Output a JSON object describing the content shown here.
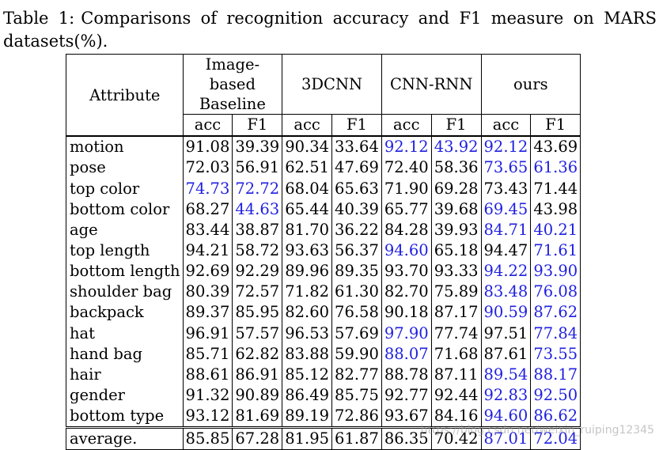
{
  "caption": {
    "label": "Table 1:",
    "text": "Comparisons of recognition accuracy and F1 measure on MARS datasets(%)."
  },
  "table": {
    "attribute_header": "Attribute",
    "methods": [
      {
        "name": "Image-based Baseline"
      },
      {
        "name": "3DCNN"
      },
      {
        "name": "CNN-RNN"
      },
      {
        "name": "ours"
      }
    ],
    "subheaders": [
      "acc",
      "F1",
      "acc",
      "F1",
      "acc",
      "F1",
      "acc",
      "F1"
    ],
    "highlight_color": "#1f1fe0",
    "rows": [
      {
        "attribute": "motion",
        "values": [
          "91.08",
          "39.39",
          "90.34",
          "33.64",
          "92.12",
          "43.92",
          "92.12",
          "43.69"
        ],
        "best": [
          false,
          false,
          false,
          false,
          true,
          true,
          true,
          false
        ]
      },
      {
        "attribute": "pose",
        "values": [
          "72.03",
          "56.91",
          "62.51",
          "47.69",
          "72.40",
          "58.36",
          "73.65",
          "61.36"
        ],
        "best": [
          false,
          false,
          false,
          false,
          false,
          false,
          true,
          true
        ]
      },
      {
        "attribute": "top color",
        "values": [
          "74.73",
          "72.72",
          "68.04",
          "65.63",
          "71.90",
          "69.28",
          "73.43",
          "71.44"
        ],
        "best": [
          true,
          true,
          false,
          false,
          false,
          false,
          false,
          false
        ]
      },
      {
        "attribute": "bottom color",
        "values": [
          "68.27",
          "44.63",
          "65.44",
          "40.39",
          "65.77",
          "39.68",
          "69.45",
          "43.98"
        ],
        "best": [
          false,
          true,
          false,
          false,
          false,
          false,
          true,
          false
        ]
      },
      {
        "attribute": "age",
        "values": [
          "83.44",
          "38.87",
          "81.70",
          "36.22",
          "84.28",
          "39.93",
          "84.71",
          "40.21"
        ],
        "best": [
          false,
          false,
          false,
          false,
          false,
          false,
          true,
          true
        ]
      },
      {
        "attribute": "top length",
        "values": [
          "94.21",
          "58.72",
          "93.63",
          "56.37",
          "94.60",
          "65.18",
          "94.47",
          "71.61"
        ],
        "best": [
          false,
          false,
          false,
          false,
          true,
          false,
          false,
          true
        ]
      },
      {
        "attribute": "bottom length",
        "values": [
          "92.69",
          "92.29",
          "89.96",
          "89.35",
          "93.70",
          "93.33",
          "94.22",
          "93.90"
        ],
        "best": [
          false,
          false,
          false,
          false,
          false,
          false,
          true,
          true
        ]
      },
      {
        "attribute": "shoulder bag",
        "values": [
          "80.39",
          "72.57",
          "71.82",
          "61.30",
          "82.70",
          "75.89",
          "83.48",
          "76.08"
        ],
        "best": [
          false,
          false,
          false,
          false,
          false,
          false,
          true,
          true
        ]
      },
      {
        "attribute": "backpack",
        "values": [
          "89.37",
          "85.95",
          "82.60",
          "76.58",
          "90.18",
          "87.17",
          "90.59",
          "87.62"
        ],
        "best": [
          false,
          false,
          false,
          false,
          false,
          false,
          true,
          true
        ]
      },
      {
        "attribute": "hat",
        "values": [
          "96.91",
          "57.57",
          "96.53",
          "57.69",
          "97.90",
          "77.74",
          "97.51",
          "77.84"
        ],
        "best": [
          false,
          false,
          false,
          false,
          true,
          false,
          false,
          true
        ]
      },
      {
        "attribute": "hand bag",
        "values": [
          "85.71",
          "62.82",
          "83.88",
          "59.90",
          "88.07",
          "71.68",
          "87.61",
          "73.55"
        ],
        "best": [
          false,
          false,
          false,
          false,
          true,
          false,
          false,
          true
        ]
      },
      {
        "attribute": "hair",
        "values": [
          "88.61",
          "86.91",
          "85.12",
          "82.77",
          "88.78",
          "87.11",
          "89.54",
          "88.17"
        ],
        "best": [
          false,
          false,
          false,
          false,
          false,
          false,
          true,
          true
        ]
      },
      {
        "attribute": "gender",
        "values": [
          "91.32",
          "90.89",
          "86.49",
          "85.75",
          "92.77",
          "92.44",
          "92.83",
          "92.50"
        ],
        "best": [
          false,
          false,
          false,
          false,
          false,
          false,
          true,
          true
        ]
      },
      {
        "attribute": "bottom type",
        "values": [
          "93.12",
          "81.69",
          "89.19",
          "72.86",
          "93.67",
          "84.16",
          "94.60",
          "86.62"
        ],
        "best": [
          false,
          false,
          false,
          false,
          false,
          false,
          true,
          true
        ]
      }
    ],
    "average": {
      "attribute": "average.",
      "values": [
        "85.85",
        "67.28",
        "81.95",
        "61.87",
        "86.35",
        "70.42",
        "87.01",
        "72.04"
      ],
      "best": [
        false,
        false,
        false,
        false,
        false,
        false,
        true,
        true
      ]
    }
  },
  "watermark": "https://blog.csdn.net/weixin_ruiping12345"
}
